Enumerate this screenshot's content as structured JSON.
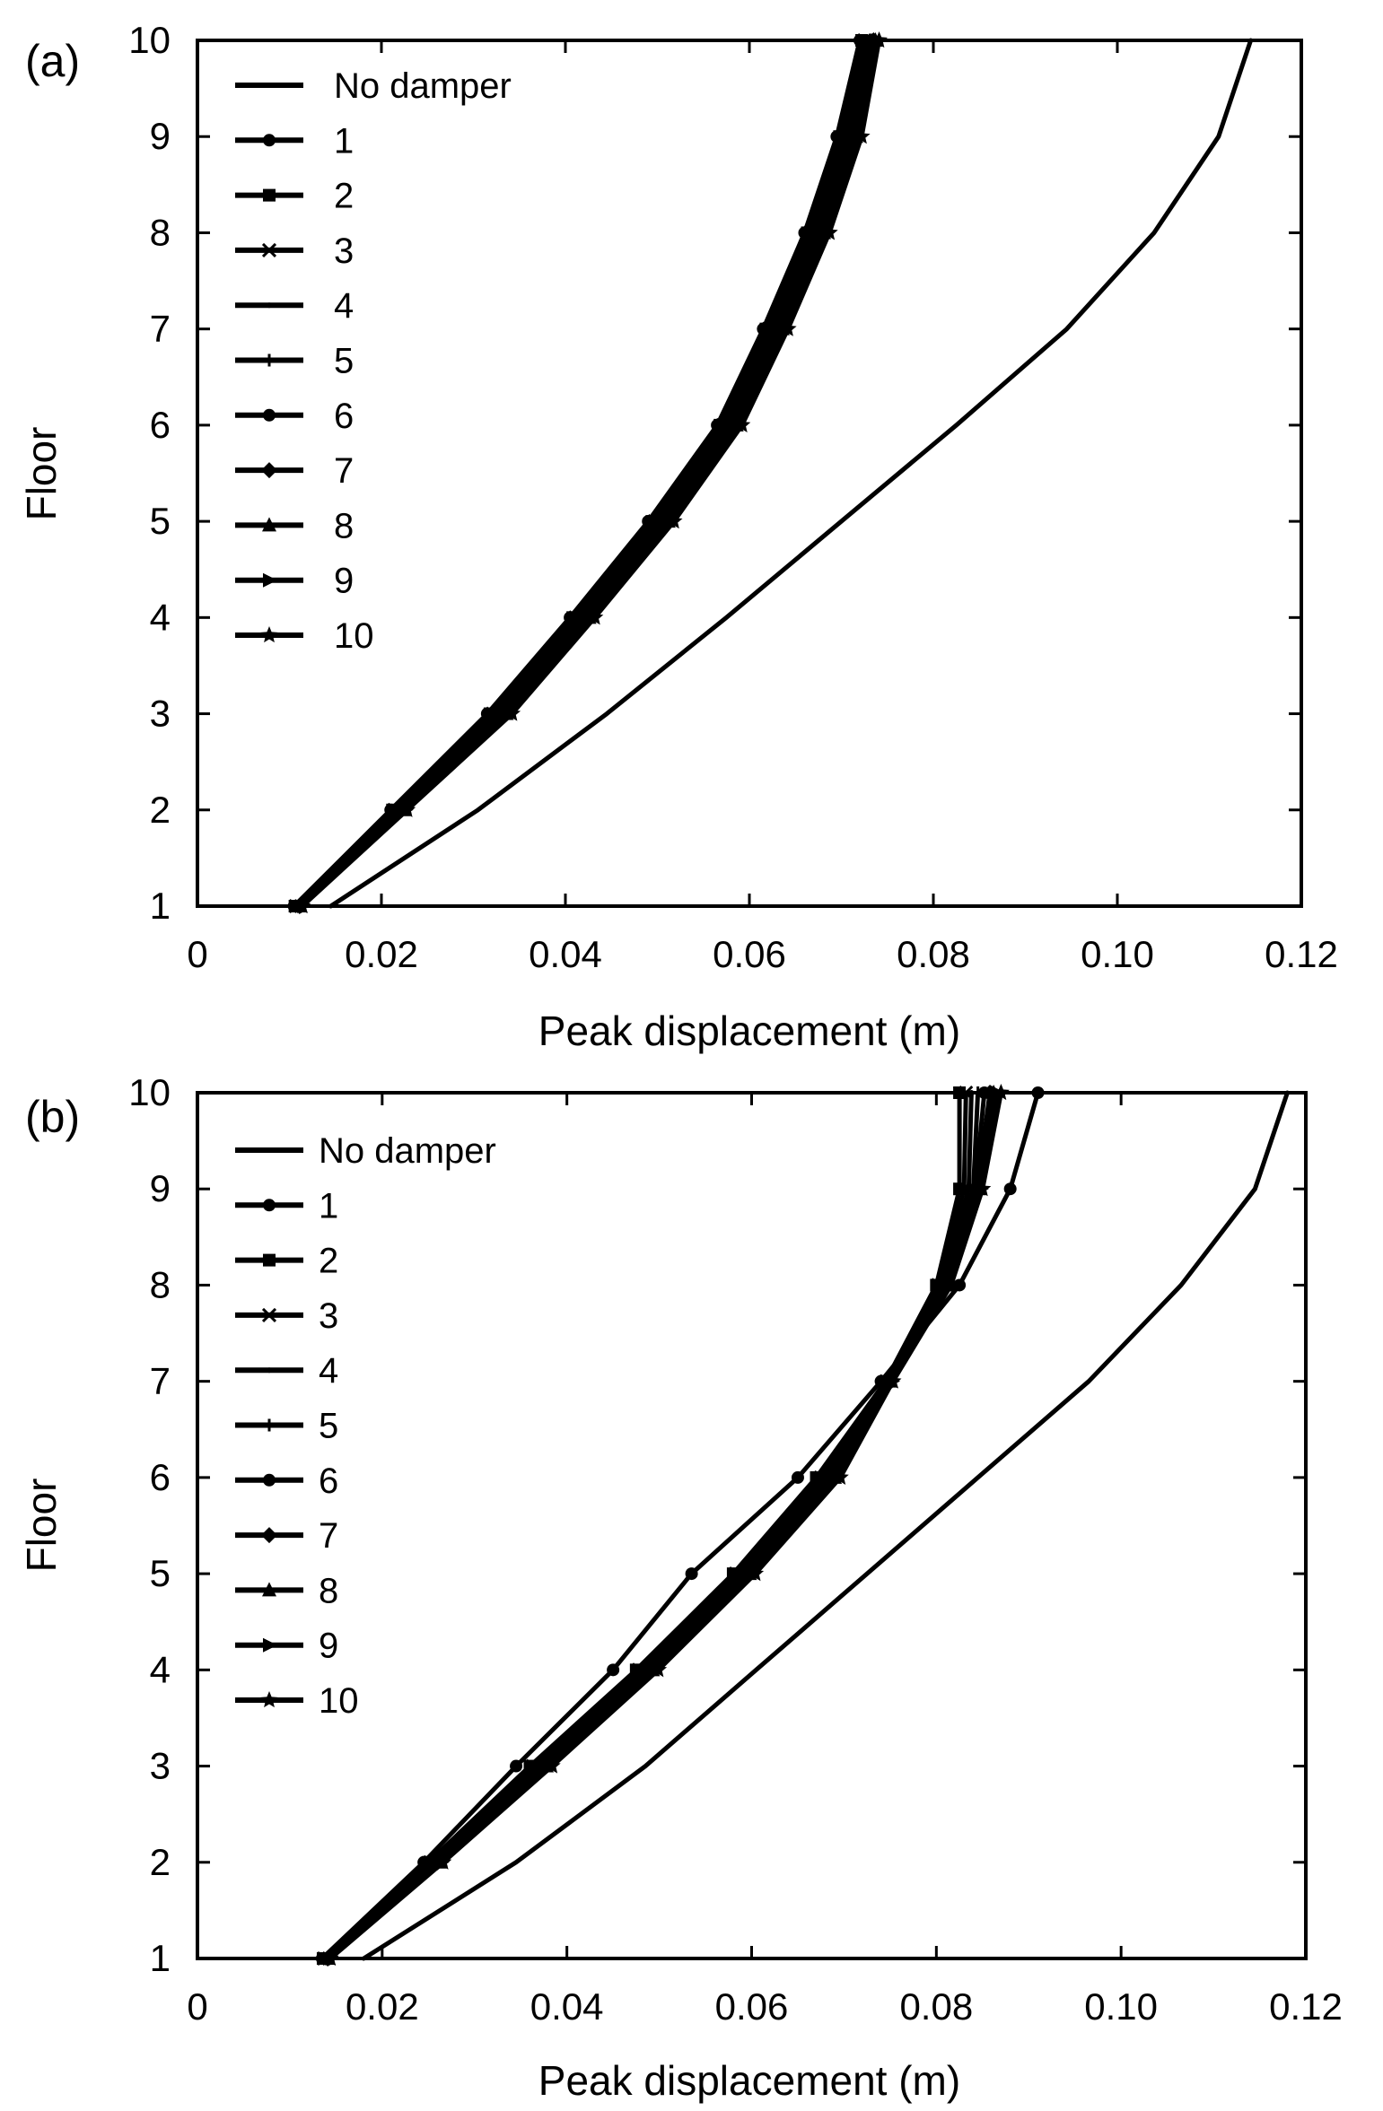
{
  "chart_data": [
    {
      "type": "line",
      "panel_label": "(a)",
      "title": "",
      "xlabel": "Peak displacement (m)",
      "ylabel": "Floor",
      "xlim": [
        0,
        0.12
      ],
      "ylim": [
        1,
        10
      ],
      "x_ticks": [
        0,
        0.02,
        0.04,
        0.06,
        0.08,
        0.1,
        0.12
      ],
      "x_tick_labels": [
        "0",
        "0.02",
        "0.04",
        "0.06",
        "0.08",
        "0.10",
        "0.12"
      ],
      "y_ticks": [
        1,
        2,
        3,
        4,
        5,
        6,
        7,
        8,
        9,
        10
      ],
      "y_tick_labels": [
        "1",
        "2",
        "3",
        "4",
        "5",
        "6",
        "7",
        "8",
        "9",
        "10"
      ],
      "grid": false,
      "legend_position": "top-left",
      "floors": [
        1,
        2,
        3,
        4,
        5,
        6,
        7,
        8,
        9,
        10
      ],
      "series": [
        {
          "name": "No damper",
          "marker": "none",
          "values": [
            0.0145,
            0.0305,
            0.0445,
            0.0575,
            0.07,
            0.0825,
            0.0945,
            0.104,
            0.111,
            0.1145
          ]
        },
        {
          "name": "1",
          "marker": "circle",
          "values": [
            0.0105,
            0.021,
            0.0315,
            0.0405,
            0.049,
            0.0565,
            0.0615,
            0.066,
            0.0695,
            0.072
          ]
        },
        {
          "name": "2",
          "marker": "square",
          "values": [
            0.0106,
            0.0212,
            0.0318,
            0.0408,
            0.0494,
            0.0568,
            0.0618,
            0.0663,
            0.0698,
            0.0722
          ]
        },
        {
          "name": "3",
          "marker": "x",
          "values": [
            0.0107,
            0.0214,
            0.0321,
            0.0411,
            0.0497,
            0.0571,
            0.0621,
            0.0666,
            0.0701,
            0.0725
          ]
        },
        {
          "name": "4",
          "marker": "dot",
          "values": [
            0.0108,
            0.0216,
            0.0324,
            0.0414,
            0.05,
            0.0574,
            0.0624,
            0.0669,
            0.0704,
            0.0728
          ]
        },
        {
          "name": "5",
          "marker": "plus",
          "values": [
            0.0109,
            0.0218,
            0.0327,
            0.0417,
            0.0503,
            0.0577,
            0.0627,
            0.0672,
            0.0707,
            0.0731
          ]
        },
        {
          "name": "6",
          "marker": "circle",
          "values": [
            0.011,
            0.022,
            0.033,
            0.042,
            0.0506,
            0.058,
            0.063,
            0.0675,
            0.071,
            0.0733
          ]
        },
        {
          "name": "7",
          "marker": "diamond",
          "values": [
            0.0111,
            0.0222,
            0.0333,
            0.0423,
            0.0509,
            0.0583,
            0.0633,
            0.0678,
            0.0713,
            0.0735
          ]
        },
        {
          "name": "8",
          "marker": "triangle",
          "values": [
            0.0112,
            0.0224,
            0.0336,
            0.0426,
            0.0512,
            0.0586,
            0.0636,
            0.0681,
            0.0716,
            0.0737
          ]
        },
        {
          "name": "9",
          "marker": "triangle-right",
          "values": [
            0.0113,
            0.0226,
            0.0339,
            0.0429,
            0.0515,
            0.0589,
            0.0639,
            0.0684,
            0.0719,
            0.0739
          ]
        },
        {
          "name": "10",
          "marker": "star",
          "values": [
            0.0114,
            0.0228,
            0.0342,
            0.0432,
            0.0518,
            0.0592,
            0.0642,
            0.0687,
            0.0722,
            0.0741
          ]
        }
      ]
    },
    {
      "type": "line",
      "panel_label": "(b)",
      "title": "",
      "xlabel": "Peak displacement (m)",
      "ylabel": "Floor",
      "xlim": [
        0,
        0.12
      ],
      "ylim": [
        1,
        10
      ],
      "x_ticks": [
        0,
        0.02,
        0.04,
        0.06,
        0.08,
        0.1,
        0.12
      ],
      "x_tick_labels": [
        "0",
        "0.02",
        "0.04",
        "0.06",
        "0.08",
        "0.10",
        "0.12"
      ],
      "y_ticks": [
        1,
        2,
        3,
        4,
        5,
        6,
        7,
        8,
        9,
        10
      ],
      "y_tick_labels": [
        "1",
        "2",
        "3",
        "4",
        "5",
        "6",
        "7",
        "8",
        "9",
        "10"
      ],
      "grid": false,
      "legend_position": "top-left",
      "floors": [
        1,
        2,
        3,
        4,
        5,
        6,
        7,
        8,
        9,
        10
      ],
      "series": [
        {
          "name": "No damper",
          "marker": "none",
          "values": [
            0.018,
            0.0345,
            0.0485,
            0.0605,
            0.0725,
            0.0845,
            0.0965,
            0.1065,
            0.1145,
            0.118
          ]
        },
        {
          "name": "1",
          "marker": "circle",
          "values": [
            0.0135,
            0.0245,
            0.0345,
            0.045,
            0.0535,
            0.065,
            0.074,
            0.0825,
            0.088,
            0.091
          ]
        },
        {
          "name": "2",
          "marker": "square",
          "values": [
            0.0136,
            0.025,
            0.036,
            0.0475,
            0.058,
            0.067,
            0.0745,
            0.08,
            0.0825,
            0.0825
          ]
        },
        {
          "name": "3",
          "marker": "x",
          "values": [
            0.0137,
            0.0252,
            0.0363,
            0.0478,
            0.0583,
            0.0675,
            0.0746,
            0.0802,
            0.083,
            0.0832
          ]
        },
        {
          "name": "4",
          "marker": "dot",
          "values": [
            0.0138,
            0.0254,
            0.0366,
            0.0481,
            0.0586,
            0.0678,
            0.0747,
            0.0804,
            0.0835,
            0.0838
          ]
        },
        {
          "name": "5",
          "marker": "plus",
          "values": [
            0.0139,
            0.0256,
            0.0369,
            0.0484,
            0.0589,
            0.0681,
            0.0748,
            0.0806,
            0.084,
            0.0845
          ]
        },
        {
          "name": "6",
          "marker": "circle",
          "values": [
            0.014,
            0.0258,
            0.0372,
            0.0487,
            0.0592,
            0.0684,
            0.0749,
            0.0808,
            0.0842,
            0.0852
          ]
        },
        {
          "name": "7",
          "marker": "diamond",
          "values": [
            0.0141,
            0.026,
            0.0375,
            0.049,
            0.0595,
            0.0687,
            0.075,
            0.081,
            0.0844,
            0.0858
          ]
        },
        {
          "name": "8",
          "marker": "triangle",
          "values": [
            0.0142,
            0.0262,
            0.0378,
            0.0493,
            0.0598,
            0.069,
            0.0751,
            0.0812,
            0.0846,
            0.0862
          ]
        },
        {
          "name": "9",
          "marker": "triangle-right",
          "values": [
            0.0143,
            0.0264,
            0.0381,
            0.0496,
            0.0601,
            0.0693,
            0.0752,
            0.0814,
            0.0848,
            0.0866
          ]
        },
        {
          "name": "10",
          "marker": "star",
          "values": [
            0.0144,
            0.0266,
            0.0384,
            0.0499,
            0.0604,
            0.0696,
            0.0753,
            0.0816,
            0.085,
            0.087
          ]
        }
      ]
    }
  ]
}
